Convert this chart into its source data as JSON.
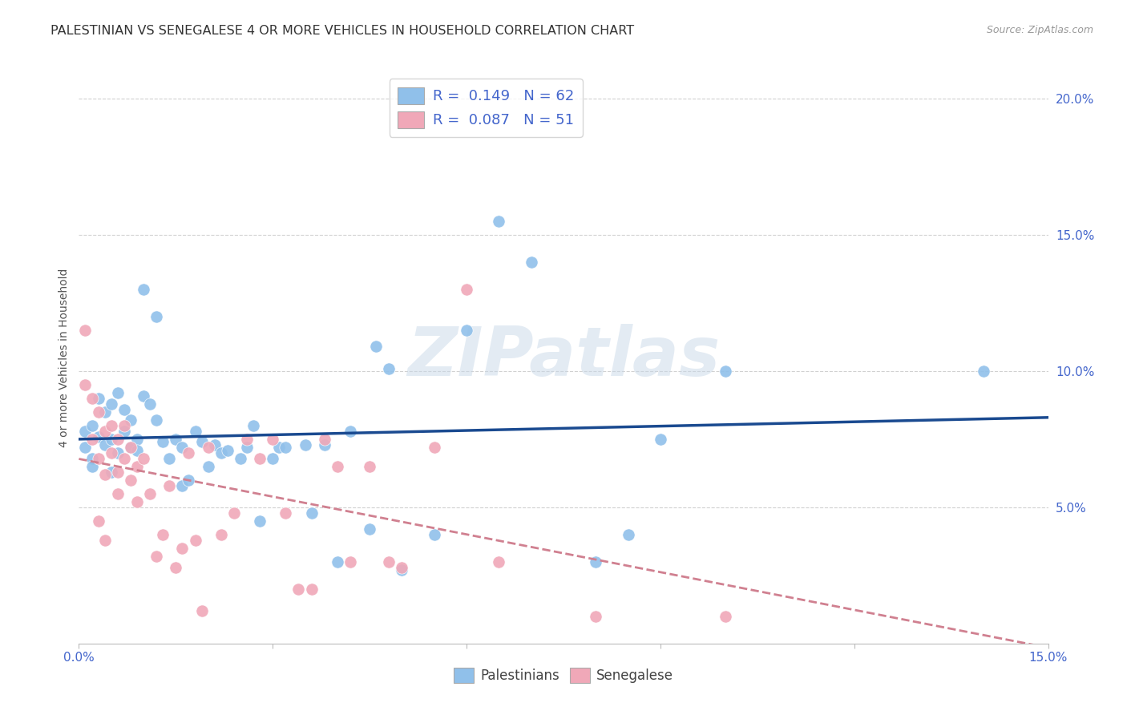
{
  "title": "PALESTINIAN VS SENEGALESE 4 OR MORE VEHICLES IN HOUSEHOLD CORRELATION CHART",
  "source": "Source: ZipAtlas.com",
  "ylabel": "4 or more Vehicles in Household",
  "xlim": [
    0.0,
    0.15
  ],
  "ylim": [
    0.0,
    0.21
  ],
  "xticks": [
    0.0,
    0.03,
    0.06,
    0.09,
    0.12,
    0.15
  ],
  "yticks": [
    0.05,
    0.1,
    0.15,
    0.2
  ],
  "xticklabels_show": [
    "0.0%",
    "15.0%"
  ],
  "yticklabels": [
    "5.0%",
    "10.0%",
    "15.0%",
    "20.0%"
  ],
  "palestinian_R": "0.149",
  "palestinian_N": "62",
  "senegalese_R": "0.087",
  "senegalese_N": "51",
  "palestinian_color": "#90c0ea",
  "senegalese_color": "#f0a8b8",
  "trendline_pal_color": "#1a4a90",
  "trendline_sen_color": "#d08090",
  "watermark": "ZIPatlas",
  "background_color": "#ffffff",
  "grid_color": "#cccccc",
  "tick_color": "#4466cc",
  "title_fontsize": 11.5,
  "axis_label_fontsize": 10,
  "tick_fontsize": 11,
  "legend_fontsize": 13,
  "palestinians_x": [
    0.001,
    0.001,
    0.002,
    0.002,
    0.002,
    0.003,
    0.003,
    0.004,
    0.004,
    0.005,
    0.005,
    0.005,
    0.006,
    0.006,
    0.007,
    0.007,
    0.008,
    0.008,
    0.009,
    0.009,
    0.01,
    0.01,
    0.011,
    0.012,
    0.012,
    0.013,
    0.014,
    0.015,
    0.016,
    0.016,
    0.017,
    0.018,
    0.019,
    0.02,
    0.021,
    0.022,
    0.023,
    0.025,
    0.026,
    0.027,
    0.028,
    0.03,
    0.031,
    0.032,
    0.035,
    0.036,
    0.038,
    0.04,
    0.042,
    0.045,
    0.046,
    0.048,
    0.05,
    0.055,
    0.06,
    0.065,
    0.07,
    0.08,
    0.085,
    0.09,
    0.1,
    0.14
  ],
  "palestinians_y": [
    0.078,
    0.072,
    0.08,
    0.068,
    0.065,
    0.09,
    0.076,
    0.085,
    0.073,
    0.088,
    0.075,
    0.063,
    0.092,
    0.07,
    0.086,
    0.078,
    0.082,
    0.072,
    0.075,
    0.071,
    0.13,
    0.091,
    0.088,
    0.12,
    0.082,
    0.074,
    0.068,
    0.075,
    0.058,
    0.072,
    0.06,
    0.078,
    0.074,
    0.065,
    0.073,
    0.07,
    0.071,
    0.068,
    0.072,
    0.08,
    0.045,
    0.068,
    0.072,
    0.072,
    0.073,
    0.048,
    0.073,
    0.03,
    0.078,
    0.042,
    0.109,
    0.101,
    0.027,
    0.04,
    0.115,
    0.155,
    0.14,
    0.03,
    0.04,
    0.075,
    0.1,
    0.1
  ],
  "senegalese_x": [
    0.001,
    0.001,
    0.002,
    0.002,
    0.003,
    0.003,
    0.003,
    0.004,
    0.004,
    0.004,
    0.005,
    0.005,
    0.006,
    0.006,
    0.006,
    0.007,
    0.007,
    0.008,
    0.008,
    0.009,
    0.009,
    0.01,
    0.011,
    0.012,
    0.013,
    0.014,
    0.015,
    0.016,
    0.017,
    0.018,
    0.019,
    0.02,
    0.022,
    0.024,
    0.026,
    0.028,
    0.03,
    0.032,
    0.034,
    0.036,
    0.038,
    0.04,
    0.042,
    0.045,
    0.048,
    0.05,
    0.055,
    0.06,
    0.065,
    0.08,
    0.1
  ],
  "senegalese_y": [
    0.115,
    0.095,
    0.09,
    0.075,
    0.085,
    0.068,
    0.045,
    0.078,
    0.062,
    0.038,
    0.08,
    0.07,
    0.075,
    0.063,
    0.055,
    0.08,
    0.068,
    0.072,
    0.06,
    0.065,
    0.052,
    0.068,
    0.055,
    0.032,
    0.04,
    0.058,
    0.028,
    0.035,
    0.07,
    0.038,
    0.012,
    0.072,
    0.04,
    0.048,
    0.075,
    0.068,
    0.075,
    0.048,
    0.02,
    0.02,
    0.075,
    0.065,
    0.03,
    0.065,
    0.03,
    0.028,
    0.072,
    0.13,
    0.03,
    0.01,
    0.01
  ]
}
